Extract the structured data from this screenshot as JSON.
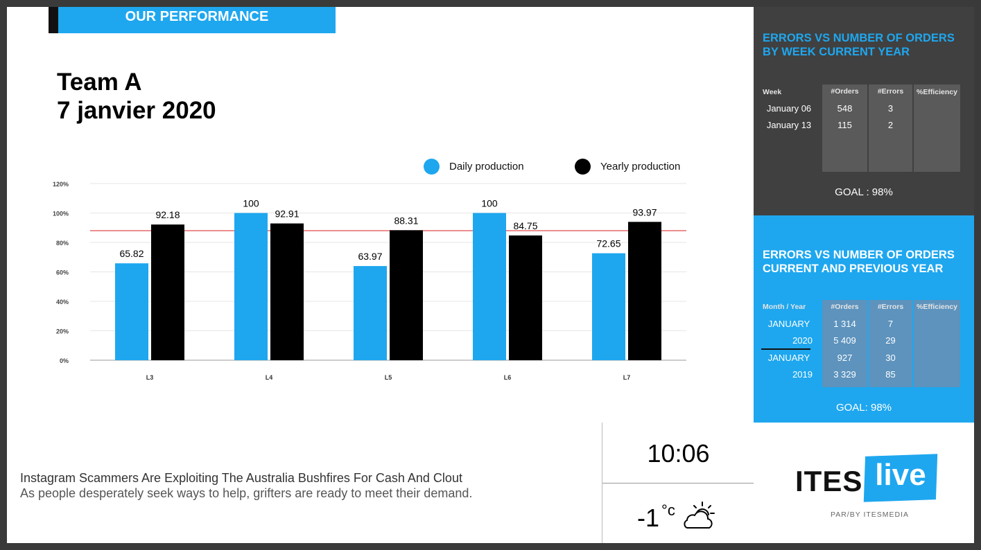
{
  "header": {
    "title": "OUR PERFORMANCE"
  },
  "team": {
    "name": "Team A",
    "date": "7 janvier 2020"
  },
  "legend": {
    "daily": "Daily production",
    "yearly": "Yearly production"
  },
  "colors": {
    "accent": "#1ea7ef",
    "yearly": "#000000",
    "goal_line": "#e04a4a",
    "dark_panel": "#404040"
  },
  "chart_data": {
    "type": "bar",
    "categories": [
      "L3",
      "L4",
      "L5",
      "L6",
      "L7"
    ],
    "series": [
      {
        "name": "Daily production",
        "values": [
          65.82,
          100,
          63.97,
          100,
          72.65
        ]
      },
      {
        "name": "Yearly production",
        "values": [
          92.18,
          92.91,
          88.31,
          84.75,
          93.97
        ]
      }
    ],
    "data_labels": {
      "daily": [
        "65.82",
        "100",
        "63.97",
        "100",
        "72.65"
      ],
      "yearly": [
        "92.18",
        "92.91",
        "88.31",
        "84.75",
        "93.97"
      ]
    },
    "yticks": [
      "0%",
      "20%",
      "40%",
      "60%",
      "80%",
      "100%",
      "120%"
    ],
    "ylim": [
      0,
      120
    ],
    "goal_value": 88,
    "grid": true,
    "legend_position": "top-right"
  },
  "news": {
    "headline": "Instagram Scammers Are Exploiting The Australia Bushfires For Cash And Clout",
    "subtitle": "As people desperately seek ways to help, grifters are ready to meet their demand."
  },
  "clock": {
    "time": "10:06",
    "temperature": "-1",
    "unit": "°c",
    "weather_icon": "partly-cloudy-icon"
  },
  "weekly": {
    "title_line1": "ERRORS VS NUMBER OF ORDERS",
    "title_line2": "BY WEEK CURRENT YEAR",
    "headers": [
      "Week",
      "#Orders",
      "#Errors",
      "%Efficiency"
    ],
    "rows": [
      [
        "January 06",
        "548",
        "3",
        ""
      ],
      [
        "January 13",
        "115",
        "2",
        ""
      ]
    ],
    "goal": "GOAL : 98%"
  },
  "yearly": {
    "title_line1": "ERRORS VS NUMBER OF ORDERS",
    "title_line2": "CURRENT AND PREVIOUS YEAR",
    "headers": [
      "Month / Year",
      "#Orders",
      "#Errors",
      "%Efficiency"
    ],
    "rows": [
      [
        "JANUARY",
        "1 314",
        "7",
        ""
      ],
      [
        "2020",
        "5 409",
        "29",
        ""
      ],
      [
        "JANUARY",
        "927",
        "30",
        ""
      ],
      [
        "2019",
        "3 329",
        "85",
        ""
      ]
    ],
    "goal": "GOAL: 98%"
  },
  "brand": {
    "name_a": "ITES",
    "name_b": "live",
    "byline": "PAR/BY ITESMEDIA"
  }
}
